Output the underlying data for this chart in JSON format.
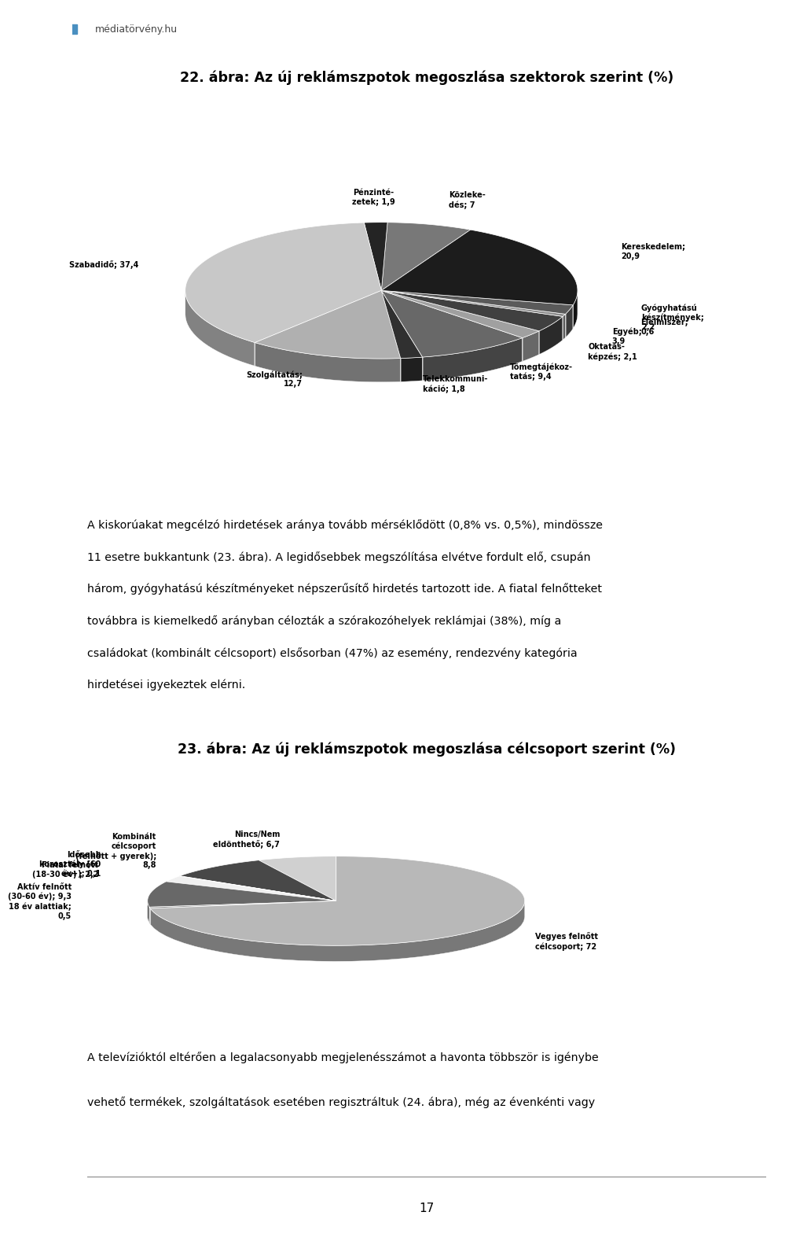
{
  "chart1_title": "22. ábra: Az új reklámszpotok megoszlása szektorok szerint (%)",
  "chart1_values": [
    20.9,
    2.2,
    0.6,
    3.9,
    2.1,
    9.4,
    1.8,
    12.7,
    37.4,
    1.9,
    7.0
  ],
  "chart1_labels": [
    "Kereskedelem;\n20,9",
    "Gyógyhatású\nkészítmények;\n2,2",
    "Élelmiszer;\n0,6",
    "Egyéb;\n3,9",
    "Oktatás-\nképzés; 2,1",
    "Tömegtájékoz-\ntatás; 9,4",
    "Telekkommuni-\nkáció; 1,8",
    "Szolgáltatás;\n12,7",
    "Szabadidő; 37,4",
    "Pénzinté-\nzetek; 1,9",
    "Közleke-\ndés; 7"
  ],
  "chart1_colors": [
    "#1c1c1c",
    "#5a5a5a",
    "#8c8c8c",
    "#404040",
    "#a0a0a0",
    "#686868",
    "#303030",
    "#b0b0b0",
    "#c8c8c8",
    "#242424",
    "#787878"
  ],
  "chart1_startangle": 63,
  "chart2_title": "23. ábra: Az új reklámszpotok megoszlása célcsoport szerint (%)",
  "chart2_values": [
    72.0,
    0.5,
    9.3,
    2.2,
    0.1,
    8.8,
    6.7
  ],
  "chart2_labels": [
    "Vegyes felnőtt\ncélcsoport; 72",
    "18 év alattiak;\n0,5",
    "Aktív felnőtt\n(30-60 év); 9,3",
    "Fiatal felnőtt\n(18-30 év) ; 2,2",
    "Idősebb\nkorosztály (60\név+); 0,1",
    "Kombinált\ncélcsoport\n(felnőtt + gyerek);\n8,8",
    "Nincs/Nem\neldönthető; 6,7"
  ],
  "chart2_colors": [
    "#b8b8b8",
    "#888888",
    "#686868",
    "#f0f0f0",
    "#202020",
    "#484848",
    "#d0d0d0"
  ],
  "chart2_startangle": 90,
  "text1_lines": [
    "A kiskorúakat megcélzó hirdetések aránya tovább mérséklődött (0,8% vs. 0,5%), mindössze",
    "11 esetre bukkantunk (23. ábra). A legidősebbek megszólítása elvétve fordult elő, csupán",
    "három, gyógyhatású készítményeket népszerűsítő hirdetés tartozott ide. A fiatal felnőtteket",
    "továbbra is kiemelkedő arányban célozták a szórakozóhelyek reklámjai (38%), míg a",
    "családokat (kombinált célcsoport) elsősorban (47%) az esemény, rendezvény kategória",
    "hirdetései igyekeztek elérni."
  ],
  "text2_lines": [
    "A televízióktól eltérően a legalacsonyabb megjelenésszámot a havonta többször is igénybe",
    "vehető termékek, szolgáltatások esetében regisztráltuk (24. ábra), még az évenkénti vagy"
  ],
  "footer_number": "17",
  "bg_color": "#ffffff",
  "text_color": "#000000"
}
